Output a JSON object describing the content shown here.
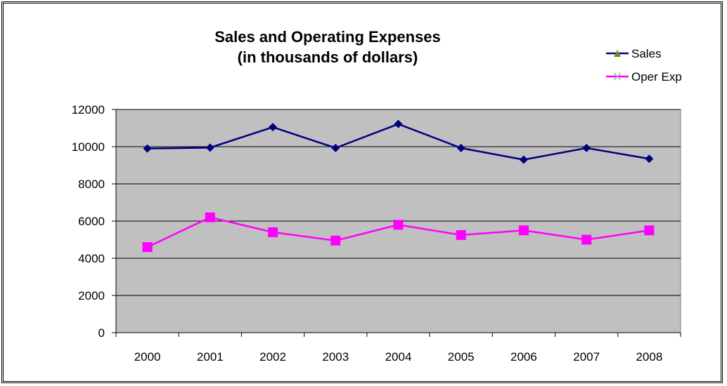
{
  "chart_data": {
    "type": "line",
    "title": "Sales and Operating Expenses",
    "subtitle": "(in thousands of dollars)",
    "xlabel": "",
    "ylabel": "",
    "categories": [
      "2000",
      "2001",
      "2002",
      "2003",
      "2004",
      "2005",
      "2006",
      "2007",
      "2008"
    ],
    "ylim": [
      0,
      12000
    ],
    "yticks": [
      "0",
      "2000",
      "4000",
      "6000",
      "8000",
      "10000",
      "12000"
    ],
    "grid": true,
    "legend_position": "top-right",
    "plot_background": "#c0c0c0",
    "series": [
      {
        "name": "Sales",
        "color": "#000080",
        "marker": "diamond",
        "legend_marker": "triangle",
        "legend_marker_color": "#6b8e23",
        "values": [
          9900,
          9950,
          11050,
          9930,
          11220,
          9930,
          9300,
          9930,
          9350
        ]
      },
      {
        "name": "Oper Exp",
        "color": "#ff00ff",
        "marker": "square",
        "legend_marker": "x",
        "legend_marker_color": "#aaaaaa",
        "values": [
          4600,
          6200,
          5400,
          4950,
          5800,
          5250,
          5500,
          5000,
          5500
        ]
      }
    ]
  }
}
